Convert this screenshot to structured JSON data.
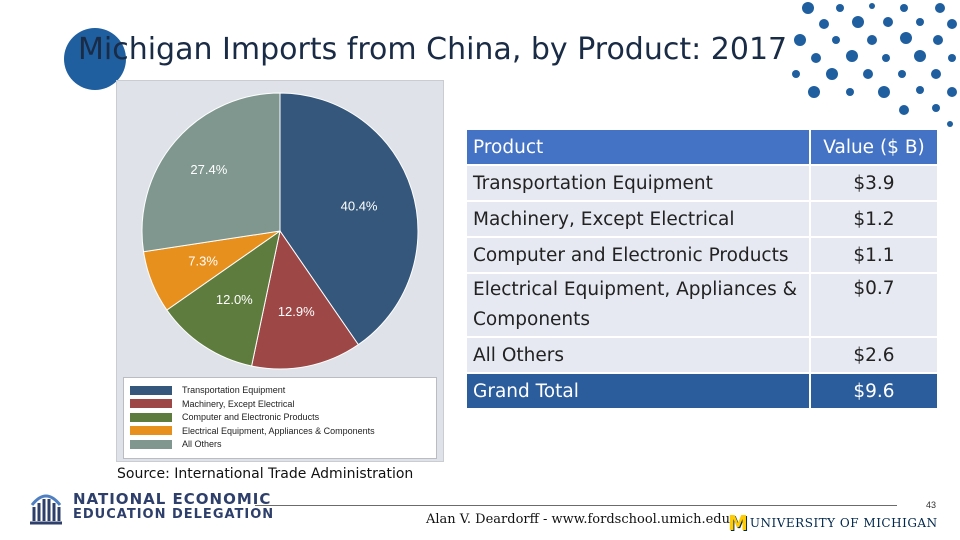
{
  "slide": {
    "title": "Michigan Imports from China, by Product: 2017",
    "source": "Source: International Trade Administration",
    "credit": "Alan V. Deardorff - www.fordschool.umich.edu",
    "page_number": "43"
  },
  "chart_data": {
    "type": "pie",
    "categories": [
      "Transportation Equipment",
      "Machinery, Except Electrical",
      "Computer and Electronic Products",
      "Electrical Equipment, Appliances & Components",
      "All Others"
    ],
    "values": [
      40.4,
      12.9,
      12.0,
      7.3,
      27.4
    ],
    "labels": [
      "40.4%",
      "12.9%",
      "12.0%",
      "7.3%",
      "27.4%"
    ],
    "colors": [
      "#34577b",
      "#9e4747",
      "#5f7c3f",
      "#e8901e",
      "#7f978f"
    ],
    "legend": "bottom"
  },
  "table": {
    "headers": [
      "Product",
      "Value ($ B)"
    ],
    "rows": [
      {
        "product": "Transportation Equipment",
        "value": "$3.9"
      },
      {
        "product": "Machinery, Except Electrical",
        "value": "$1.2"
      },
      {
        "product": "Computer and Electronic Products",
        "value": "$1.1"
      },
      {
        "product": "Electrical Equipment, Appliances & Components",
        "value": "$0.7"
      },
      {
        "product": "All Others",
        "value": "$2.6"
      }
    ],
    "total": {
      "product": "Grand Total",
      "value": "$9.6"
    }
  },
  "logos": {
    "need_line1": "NATIONAL ECONOMIC",
    "need_line2": "EDUCATION DELEGATION",
    "um_mark": "M",
    "um_text": "UNIVERSITY OF MICHIGAN"
  },
  "colors": {
    "accent": "#1f5fa0",
    "table_header": "#4472c4",
    "table_total": "#2b5c9c",
    "table_row": "#e6e9f2"
  }
}
